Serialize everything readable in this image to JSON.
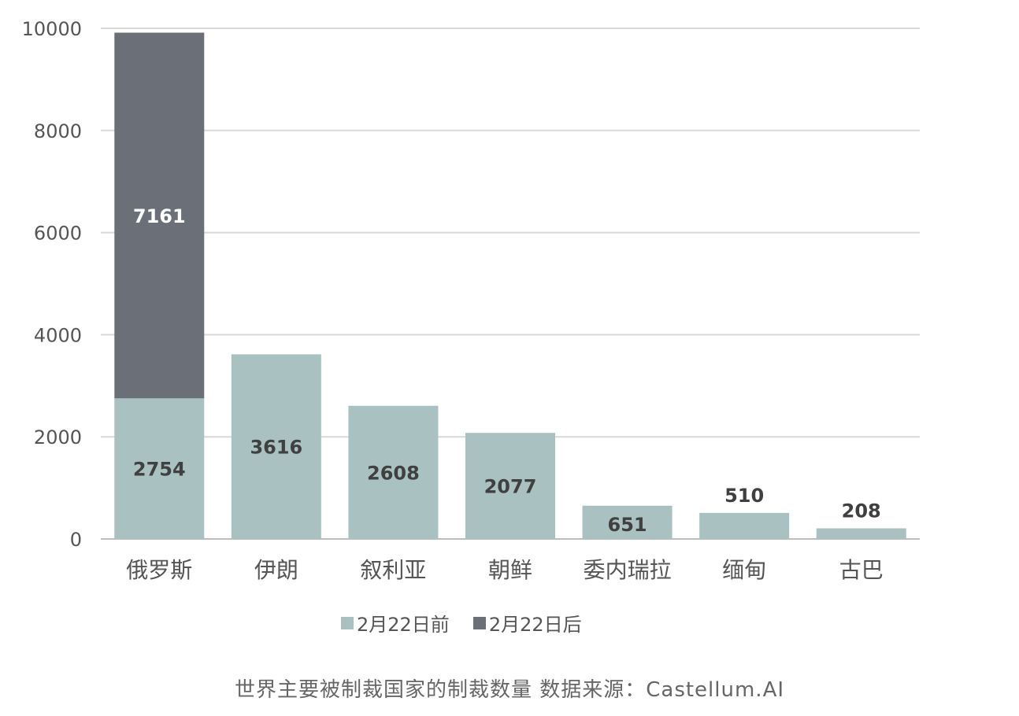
{
  "chart_data": {
    "type": "bar",
    "stacked": true,
    "categories": [
      "俄罗斯",
      "伊朗",
      "叙利亚",
      "朝鲜",
      "委内瑞拉",
      "缅甸",
      "古巴"
    ],
    "series": [
      {
        "name": "2月22日前",
        "color": "#a9c1c1",
        "label_color": "#404040",
        "values": [
          2754,
          3616,
          2608,
          2077,
          651,
          510,
          208
        ],
        "labels": [
          "2754",
          "3616",
          "2608",
          "2077",
          "651",
          "510",
          "208"
        ]
      },
      {
        "name": "2月22日后",
        "color": "#6b6f77",
        "label_color": "#ffffff",
        "values": [
          7161,
          0,
          0,
          0,
          0,
          0,
          0
        ],
        "labels": [
          "7161",
          "",
          "",
          "",
          "",
          "",
          ""
        ]
      }
    ],
    "y_ticks": [
      "0",
      "2000",
      "4000",
      "6000",
      "8000",
      "10000"
    ],
    "ylim": [
      0,
      10000
    ],
    "grid": true,
    "legend": "bottom",
    "caption": "世界主要被制裁国家的制裁数量  数据来源：Castellum.AI"
  }
}
